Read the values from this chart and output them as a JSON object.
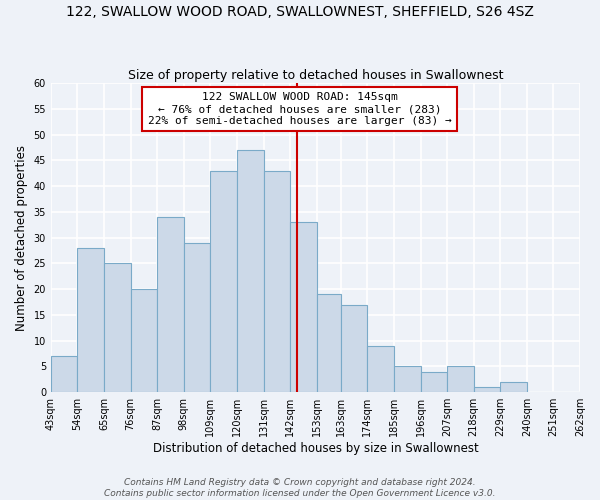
{
  "title": "122, SWALLOW WOOD ROAD, SWALLOWNEST, SHEFFIELD, S26 4SZ",
  "subtitle": "Size of property relative to detached houses in Swallownest",
  "xlabel": "Distribution of detached houses by size in Swallownest",
  "ylabel": "Number of detached properties",
  "bin_edges": [
    43,
    54,
    65,
    76,
    87,
    98,
    109,
    120,
    131,
    142,
    153,
    163,
    174,
    185,
    196,
    207,
    218,
    229,
    240,
    251,
    262
  ],
  "bin_labels": [
    "43sqm",
    "54sqm",
    "65sqm",
    "76sqm",
    "87sqm",
    "98sqm",
    "109sqm",
    "120sqm",
    "131sqm",
    "142sqm",
    "153sqm",
    "163sqm",
    "174sqm",
    "185sqm",
    "196sqm",
    "207sqm",
    "218sqm",
    "229sqm",
    "240sqm",
    "251sqm",
    "262sqm"
  ],
  "counts": [
    7,
    28,
    25,
    20,
    34,
    29,
    43,
    47,
    43,
    33,
    19,
    17,
    9,
    5,
    4,
    5,
    1,
    2,
    0,
    0
  ],
  "bar_color": "#ccd9e8",
  "bar_edge_color": "#7aaac8",
  "reference_line_x": 145,
  "reference_line_color": "#cc0000",
  "annotation_text": "122 SWALLOW WOOD ROAD: 145sqm\n← 76% of detached houses are smaller (283)\n22% of semi-detached houses are larger (83) →",
  "annotation_box_color": "white",
  "annotation_box_edge_color": "#cc0000",
  "ylim": [
    0,
    60
  ],
  "yticks": [
    0,
    5,
    10,
    15,
    20,
    25,
    30,
    35,
    40,
    45,
    50,
    55,
    60
  ],
  "footer_line1": "Contains HM Land Registry data © Crown copyright and database right 2024.",
  "footer_line2": "Contains public sector information licensed under the Open Government Licence v3.0.",
  "background_color": "#eef2f8",
  "grid_color": "white",
  "title_fontsize": 10,
  "subtitle_fontsize": 9,
  "axis_label_fontsize": 8.5,
  "tick_fontsize": 7,
  "annotation_fontsize": 8,
  "footer_fontsize": 6.5
}
